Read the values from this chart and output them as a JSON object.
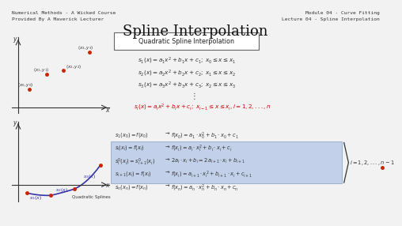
{
  "bg_color": "#f2f2f2",
  "title": "Spline Interpolation",
  "title_fontsize": 13,
  "top_left_line1": "Numerical Methods - A Wicked Course",
  "top_left_line2": "Provided By A Maverick Lecturer",
  "top_right_line1": "Module 04 - Curve Fitting",
  "top_right_line2": "Lecture 04 - Spline Interpolation",
  "header_fontsize": 4.5,
  "box_title": "Quadratic Spline Interpolation",
  "eq1": "$s_1(x) = a_1x^2 + b_1x + c_1; \\; x_0 \\leq x \\leq x_1$",
  "eq2": "$s_2(x) = a_2x^2 + b_2x + c_2; \\; x_1 \\leq x \\leq x_2$",
  "eq3": "$s_3(x) = a_3x^2 + b_3x + c_3; \\; x_2 \\leq x \\leq x_3$",
  "eq_dots": "$\\vdots$",
  "eq_general": "$s_i(x) = a_ix^2 + b_ix + c_i; \\; x_{i-1} \\leq x \\leq x_i, i = 1,2,...,n$",
  "cond1_left": "$s_1(x_0) = f(x_0)$",
  "cond1_right": "$f(x_0) = a_1 \\cdot x_0^2 + b_1 \\cdot x_0 + c_1$",
  "cond2_left": "$s_i(x_i) = f(x_i)$",
  "cond2_right": "$f(x_i) = a_i \\cdot x_i^2 + b_i \\cdot x_i + c_i$",
  "cond3_left": "$s_i'(x_i) = s_{i+1}'(x_i)$",
  "cond3_right": "$2a_i \\cdot x_i + b_i = 2a_{i+1} \\cdot x_i + b_{i+1}$",
  "cond4_left": "$s_{i+1}(x_i) = f(x_i)$",
  "cond4_right": "$f(x_i) = a_{i+1} \\cdot x_i^2 + b_{i+1} \\cdot x_i + c_{i+1}$",
  "cond5_left": "$s_n(x_n) = f(x_n)$",
  "cond5_right": "$f(x_n) = a_n \\cdot x_n^2 + b_n \\cdot x_n + c_n$",
  "arrow": "$\\rightarrow$",
  "index_label": "$i = 1,2,...,n-1$",
  "highlight_color": "#b3c6e7",
  "eq_general_color": "#cc0000",
  "text_color": "#333333",
  "blue_curve_color": "#3333aa",
  "red_dot_color": "#cc2200"
}
